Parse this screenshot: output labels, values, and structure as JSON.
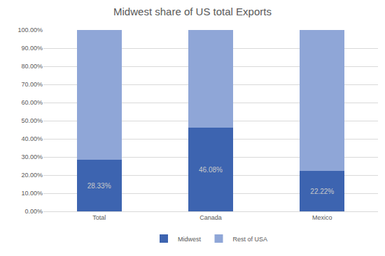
{
  "chart_data": {
    "type": "bar",
    "title": "Midwest share of US total Exports",
    "categories": [
      "Total",
      "Canada",
      "Mexico"
    ],
    "series": [
      {
        "name": "Midwest",
        "color": "#3d64b0",
        "values": [
          28.33,
          46.08,
          22.22
        ],
        "value_labels": [
          "28.33%",
          "46.08%",
          "22.22%"
        ]
      },
      {
        "name": "Rest of USA",
        "color": "#8fa6d7",
        "values": [
          71.67,
          53.92,
          77.78
        ]
      }
    ],
    "stacked": true,
    "data_labels": true,
    "ylim": [
      0,
      100
    ],
    "yticks": [
      {
        "value": 0,
        "label": "0.00%"
      },
      {
        "value": 10,
        "label": "10.00%"
      },
      {
        "value": 20,
        "label": "20.00%"
      },
      {
        "value": 30,
        "label": "30.00%"
      },
      {
        "value": 40,
        "label": "40.00%"
      },
      {
        "value": 50,
        "label": "50.00%"
      },
      {
        "value": 60,
        "label": "60.00%"
      },
      {
        "value": 70,
        "label": "70.00%"
      },
      {
        "value": 80,
        "label": "80.00%"
      },
      {
        "value": 90,
        "label": "90.00%"
      },
      {
        "value": 100,
        "label": "100.00%"
      }
    ],
    "grid": true,
    "legend": "bottom"
  }
}
